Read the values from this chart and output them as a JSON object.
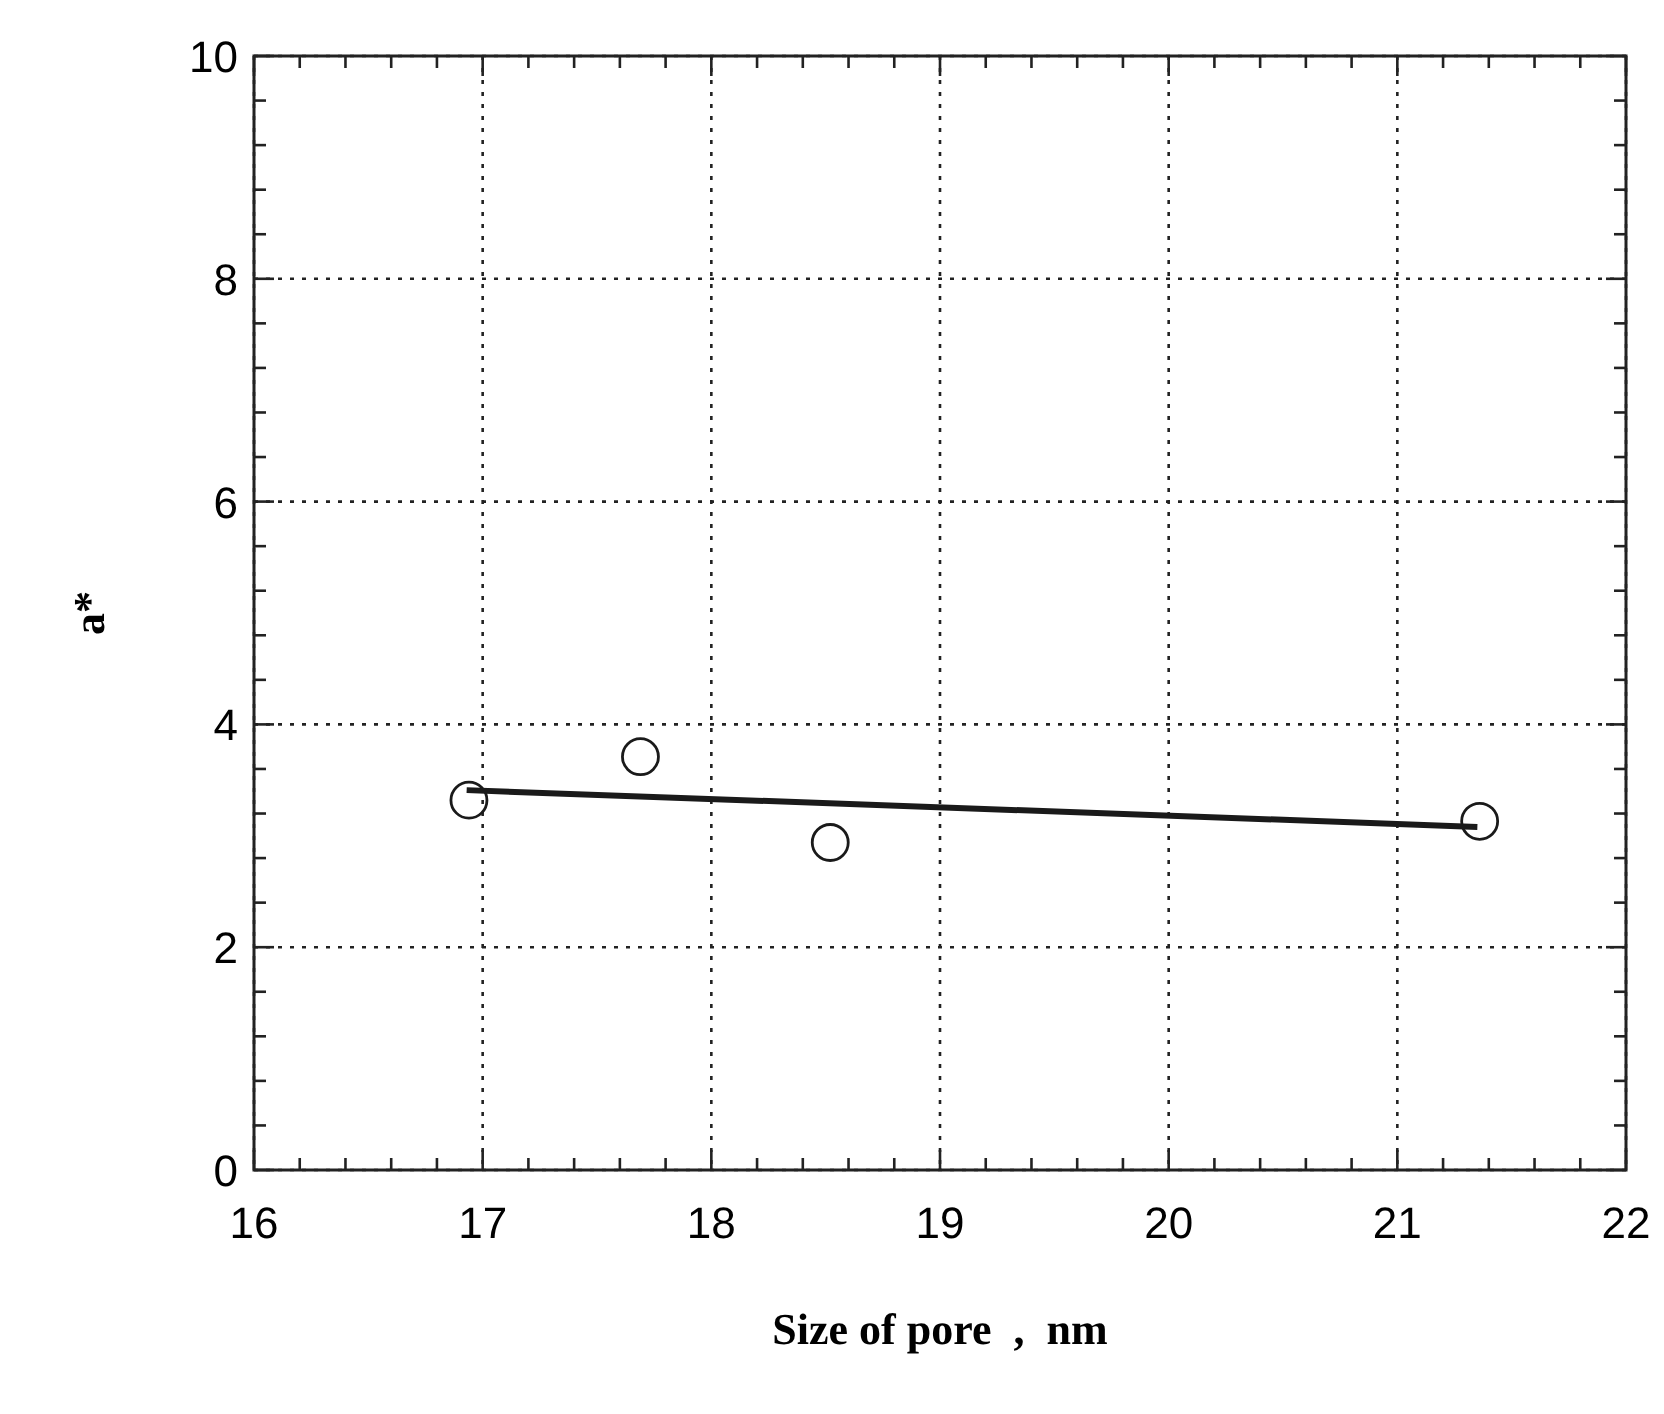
{
  "chart_data": {
    "type": "scatter",
    "xlabel": "Size of pore  ,  nm",
    "ylabel": "a*",
    "xlim": [
      16,
      22
    ],
    "ylim": [
      0,
      10
    ],
    "xticks": [
      16,
      {
        "value": 16.2,
        "label": null
      },
      {
        "value": 16.4,
        "label": null
      },
      {
        "value": 16.6,
        "label": null
      },
      {
        "value": 16.8,
        "label": null
      },
      17,
      {
        "value": 17.2,
        "label": null
      },
      {
        "value": 17.4,
        "label": null
      },
      {
        "value": 17.6,
        "label": null
      },
      {
        "value": 17.8,
        "label": null
      },
      18,
      {
        "value": 18.2,
        "label": null
      },
      {
        "value": 18.4,
        "label": null
      },
      {
        "value": 18.6,
        "label": null
      },
      {
        "value": 18.8,
        "label": null
      },
      19,
      {
        "value": 19.2,
        "label": null
      },
      {
        "value": 19.4,
        "label": null
      },
      {
        "value": 19.6,
        "label": null
      },
      {
        "value": 19.8,
        "label": null
      },
      20,
      {
        "value": 20.2,
        "label": null
      },
      {
        "value": 20.4,
        "label": null
      },
      {
        "value": 20.6,
        "label": null
      },
      {
        "value": 20.8,
        "label": null
      },
      21,
      {
        "value": 21.2,
        "label": null
      },
      {
        "value": 21.4,
        "label": null
      },
      {
        "value": 21.6,
        "label": null
      },
      {
        "value": 21.8,
        "label": null
      },
      22
    ],
    "yticks": [
      0,
      {
        "value": 0.4,
        "label": null
      },
      {
        "value": 0.8,
        "label": null
      },
      {
        "value": 1.2,
        "label": null
      },
      {
        "value": 1.6,
        "label": null
      },
      2,
      {
        "value": 2.4,
        "label": null
      },
      {
        "value": 2.8,
        "label": null
      },
      {
        "value": 3.2,
        "label": null
      },
      {
        "value": 3.6,
        "label": null
      },
      4,
      {
        "value": 4.4,
        "label": null
      },
      {
        "value": 4.8,
        "label": null
      },
      {
        "value": 5.2,
        "label": null
      },
      {
        "value": 5.6,
        "label": null
      },
      6,
      {
        "value": 6.4,
        "label": null
      },
      {
        "value": 6.8,
        "label": null
      },
      {
        "value": 7.2,
        "label": null
      },
      {
        "value": 7.6,
        "label": null
      },
      8,
      {
        "value": 8.4,
        "label": null
      },
      {
        "value": 8.8,
        "label": null
      },
      {
        "value": 9.2,
        "label": null
      },
      {
        "value": 9.6,
        "label": null
      },
      10
    ],
    "grid": true,
    "series": [
      {
        "marker": "circle",
        "color": "#1a1a1a",
        "x": [
          16.94,
          17.69,
          18.52,
          21.36
        ],
        "values": [
          3.32,
          3.71,
          2.94,
          3.13
        ]
      },
      {
        "type": "line",
        "color": "#1a1a1a",
        "x": [
          16.93,
          21.35
        ],
        "values": [
          3.41,
          3.08
        ]
      }
    ]
  }
}
